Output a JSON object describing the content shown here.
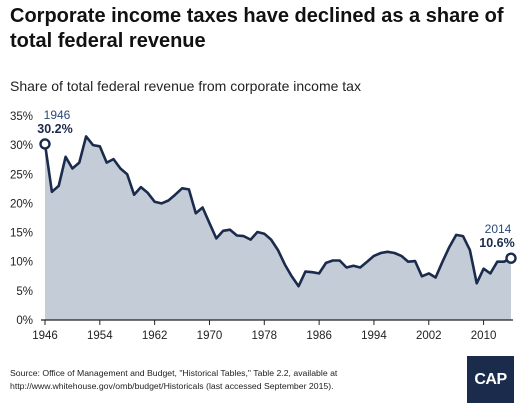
{
  "header": {
    "title": "Corporate income taxes have declined as a share of total federal revenue",
    "subtitle": "Share of total federal revenue from corporate income tax"
  },
  "footer": {
    "source": "Source: Office of Management and Budget, \"Historical Tables,\" Table 2.2, available at http://www.whitehouse.gov/omb/budget/Historicals (last accessed September 2015).",
    "logo": "CAP"
  },
  "colors": {
    "line": "#1a2b4c",
    "area": "#c4ccd8",
    "baseline": "#222222",
    "annotation": "#2a4a7a"
  },
  "chart_data": {
    "type": "area",
    "title": "Corporate income taxes have declined as a share of total federal revenue",
    "subtitle": "Share of total federal revenue from corporate income tax",
    "xlabel": "",
    "ylabel": "",
    "xlim": [
      1946,
      2014
    ],
    "ylim": [
      0,
      35
    ],
    "x_ticks": [
      1946,
      1954,
      1962,
      1970,
      1978,
      1986,
      1994,
      2002,
      2010
    ],
    "x_tick_labels": [
      "1946",
      "1954",
      "1962",
      "1970",
      "1978",
      "1986",
      "1994",
      "2002",
      "2010"
    ],
    "y_ticks": [
      0,
      5,
      10,
      15,
      20,
      25,
      30,
      35
    ],
    "y_tick_labels": [
      "0%",
      "5%",
      "10%",
      "15%",
      "20%",
      "25%",
      "30%",
      "35%"
    ],
    "grid": false,
    "annotations": [
      {
        "year_label": "1946",
        "value_label": "30.2%",
        "x": 1946,
        "y": 30.2
      },
      {
        "year_label": "2014",
        "value_label": "10.6%",
        "x": 2014,
        "y": 10.6
      }
    ],
    "x": [
      1946,
      1947,
      1948,
      1949,
      1950,
      1951,
      1952,
      1953,
      1954,
      1955,
      1956,
      1957,
      1958,
      1959,
      1960,
      1961,
      1962,
      1963,
      1964,
      1965,
      1966,
      1967,
      1968,
      1969,
      1970,
      1971,
      1972,
      1973,
      1974,
      1975,
      1976,
      1977,
      1978,
      1979,
      1980,
      1981,
      1982,
      1983,
      1984,
      1985,
      1986,
      1987,
      1988,
      1989,
      1990,
      1991,
      1992,
      1993,
      1994,
      1995,
      1996,
      1997,
      1998,
      1999,
      2000,
      2001,
      2002,
      2003,
      2004,
      2005,
      2006,
      2007,
      2008,
      2009,
      2010,
      2011,
      2012,
      2013,
      2014
    ],
    "y": [
      30.2,
      22.0,
      23.0,
      28.0,
      26.0,
      27.0,
      31.5,
      30.0,
      29.8,
      27.0,
      27.6,
      26.0,
      25.0,
      21.5,
      22.8,
      21.8,
      20.3,
      20.0,
      20.5,
      21.5,
      22.6,
      22.4,
      18.3,
      19.3,
      16.6,
      14.0,
      15.3,
      15.5,
      14.5,
      14.4,
      13.8,
      15.1,
      14.8,
      13.8,
      12.0,
      9.5,
      7.5,
      5.8,
      8.3,
      8.2,
      8.0,
      9.8,
      10.2,
      10.2,
      9.0,
      9.3,
      9.0,
      10.0,
      11.0,
      11.5,
      11.7,
      11.5,
      11.0,
      10.0,
      10.1,
      7.5,
      8.0,
      7.3,
      10.0,
      12.5,
      14.6,
      14.4,
      12.0,
      6.3,
      8.8,
      8.0,
      10.0,
      10.0,
      10.6
    ]
  }
}
